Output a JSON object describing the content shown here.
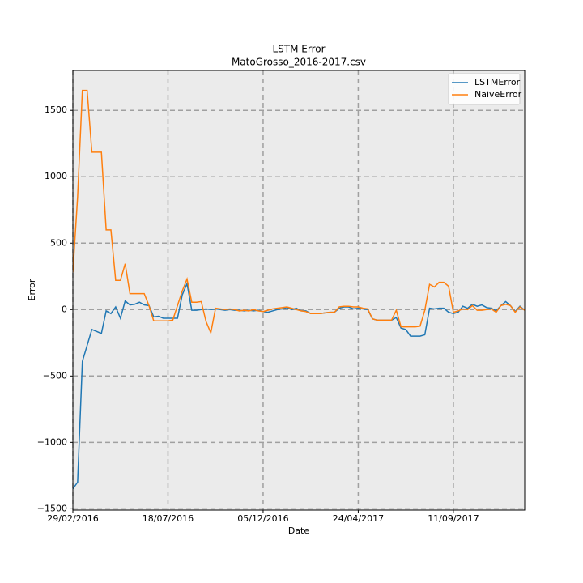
{
  "chart_data": {
    "type": "line",
    "title": "LSTM Error",
    "subtitle": "MatoGrosso_2016-2017.csv",
    "x_label": "Date",
    "y_label": "Error",
    "x": [
      "29/02/2016",
      "07/03/2016",
      "14/03/2016",
      "21/03/2016",
      "28/03/2016",
      "04/04/2016",
      "11/04/2016",
      "18/04/2016",
      "25/04/2016",
      "02/05/2016",
      "09/05/2016",
      "16/05/2016",
      "23/05/2016",
      "30/05/2016",
      "06/06/2016",
      "13/06/2016",
      "20/06/2016",
      "27/06/2016",
      "04/07/2016",
      "11/07/2016",
      "18/07/2016",
      "25/07/2016",
      "01/08/2016",
      "08/08/2016",
      "15/08/2016",
      "22/08/2016",
      "29/08/2016",
      "05/09/2016",
      "12/09/2016",
      "19/09/2016",
      "26/09/2016",
      "03/10/2016",
      "10/10/2016",
      "17/10/2016",
      "24/10/2016",
      "31/10/2016",
      "07/11/2016",
      "14/11/2016",
      "21/11/2016",
      "28/11/2016",
      "05/12/2016",
      "12/12/2016",
      "19/12/2016",
      "26/12/2016",
      "02/01/2017",
      "09/01/2017",
      "16/01/2017",
      "23/01/2017",
      "30/01/2017",
      "06/02/2017",
      "13/02/2017",
      "20/02/2017",
      "27/02/2017",
      "06/03/2017",
      "13/03/2017",
      "20/03/2017",
      "27/03/2017",
      "03/04/2017",
      "10/04/2017",
      "17/04/2017",
      "24/04/2017",
      "01/05/2017",
      "08/05/2017",
      "15/05/2017",
      "22/05/2017",
      "29/05/2017",
      "05/06/2017",
      "12/06/2017",
      "19/06/2017",
      "26/06/2017",
      "03/07/2017",
      "10/07/2017",
      "17/07/2017",
      "24/07/2017",
      "31/07/2017",
      "07/08/2017",
      "14/08/2017",
      "21/08/2017",
      "28/08/2017",
      "04/09/2017",
      "11/09/2017",
      "18/09/2017",
      "25/09/2017",
      "02/10/2017",
      "09/10/2017",
      "16/10/2017",
      "23/10/2017",
      "30/10/2017",
      "06/11/2017",
      "13/11/2017",
      "20/11/2017",
      "27/11/2017",
      "04/12/2017",
      "11/12/2017",
      "18/12/2017",
      "25/12/2017"
    ],
    "series": [
      {
        "name": "LSTMError",
        "color": "#1f77b4",
        "values": [
          -1350,
          -1300,
          -390,
          -270,
          -150,
          -165,
          -180,
          -10,
          -30,
          20,
          -65,
          65,
          35,
          40,
          55,
          35,
          30,
          -55,
          -50,
          -65,
          -65,
          -65,
          -65,
          110,
          195,
          -5,
          -5,
          0,
          5,
          0,
          5,
          0,
          -5,
          0,
          -5,
          -5,
          -10,
          -5,
          -10,
          -5,
          -15,
          -20,
          -10,
          0,
          5,
          15,
          0,
          10,
          -10,
          -10,
          -30,
          -30,
          -30,
          -25,
          -20,
          -20,
          10,
          20,
          20,
          5,
          10,
          5,
          0,
          -70,
          -80,
          -80,
          -80,
          -80,
          -60,
          -140,
          -150,
          -200,
          -200,
          -200,
          -190,
          10,
          5,
          10,
          10,
          -20,
          -30,
          -20,
          25,
          10,
          40,
          25,
          35,
          15,
          10,
          -10,
          30,
          60,
          30,
          -15,
          25,
          -5
        ]
      },
      {
        "name": "NaiveError",
        "color": "#ff7f0e",
        "values": [
          280,
          850,
          1650,
          1650,
          1185,
          1185,
          1185,
          600,
          600,
          220,
          220,
          345,
          120,
          120,
          120,
          120,
          30,
          -85,
          -85,
          -85,
          -85,
          -80,
          30,
          140,
          230,
          55,
          55,
          60,
          -90,
          -175,
          10,
          5,
          0,
          5,
          0,
          -10,
          -5,
          -10,
          0,
          -10,
          -15,
          -5,
          5,
          10,
          15,
          20,
          10,
          0,
          -10,
          -15,
          -30,
          -30,
          -30,
          -25,
          -20,
          -20,
          20,
          25,
          25,
          20,
          20,
          10,
          5,
          -70,
          -80,
          -80,
          -80,
          -80,
          -5,
          -130,
          -130,
          -130,
          -130,
          -125,
          -5,
          190,
          170,
          205,
          205,
          175,
          -20,
          -10,
          5,
          0,
          30,
          -5,
          -5,
          0,
          5,
          -20,
          30,
          40,
          30,
          -20,
          20,
          -5
        ]
      }
    ],
    "xlim": [
      "29/02/2016",
      "25/12/2017"
    ],
    "xticks": [
      "29/02/2016",
      "18/07/2016",
      "05/12/2016",
      "24/04/2017",
      "11/09/2017"
    ],
    "ylim": [
      -1510,
      1800
    ],
    "yticks": [
      {
        "value": -1500,
        "label": "−1500"
      },
      {
        "value": -1000,
        "label": "−1000"
      },
      {
        "value": -500,
        "label": "−500"
      },
      0,
      500,
      1000,
      1500
    ],
    "grid": true,
    "legend": "upper right"
  }
}
